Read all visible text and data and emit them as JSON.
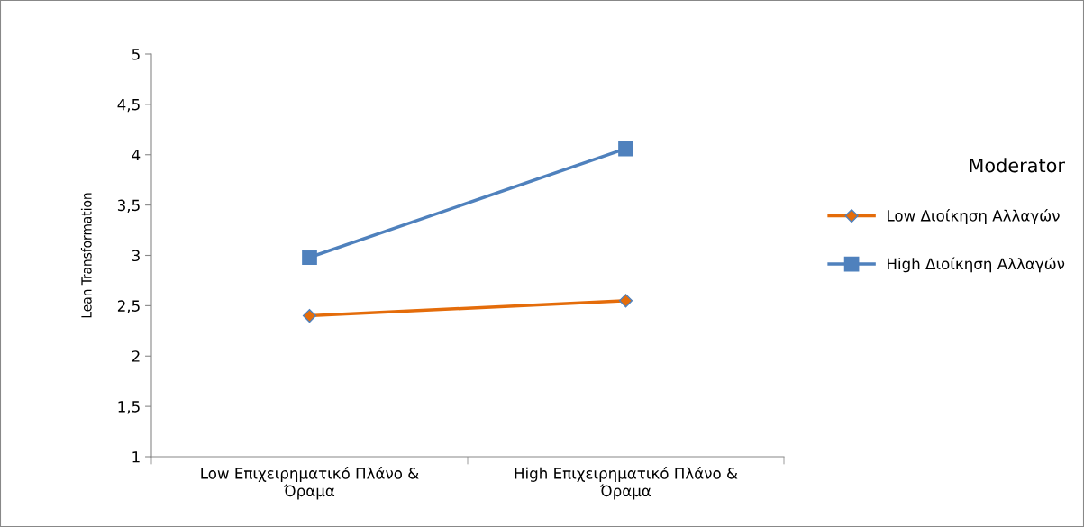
{
  "chart_data": {
    "type": "line",
    "ylabel": "Lean Transformation",
    "legend_title": "Moderator",
    "categories": [
      "Low Επιχειρηματικό Πλάνο & Όραμα",
      "High Επιχειρηματικό Πλάνο & Όραμα"
    ],
    "series": [
      {
        "name": "Low Διοίκηση Αλλαγών",
        "color": "#e46c0a",
        "marker": "diamond",
        "values": [
          2.4,
          2.55
        ]
      },
      {
        "name": "High Διοίκηση Αλλαγών",
        "color": "#4f81bd",
        "marker": "square",
        "values": [
          2.98,
          4.06
        ]
      }
    ],
    "ylim": [
      1,
      5
    ],
    "yticks": [
      1,
      {
        "value": 1.5,
        "label": "1,5"
      },
      2,
      {
        "value": 2.5,
        "label": "2,5"
      },
      3,
      {
        "value": 3.5,
        "label": "3,5"
      },
      4,
      {
        "value": 4.5,
        "label": "4,5"
      },
      5
    ],
    "grid": false,
    "legend": "right",
    "line_style": "solid"
  }
}
